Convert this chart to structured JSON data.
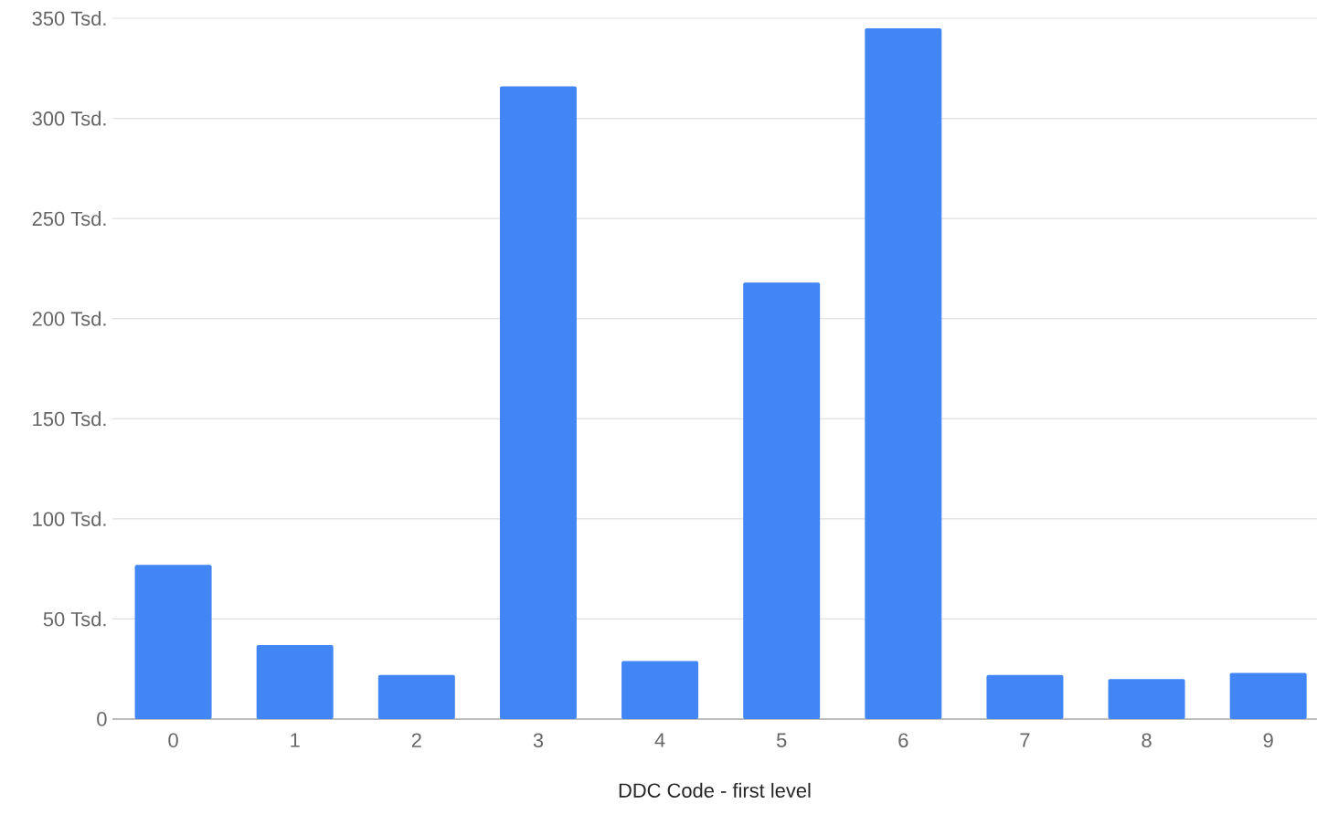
{
  "chart_data": {
    "type": "bar",
    "xlabel": "DDC Code - first level",
    "categories": [
      "0",
      "1",
      "2",
      "3",
      "4",
      "5",
      "6",
      "7",
      "8",
      "9"
    ],
    "values": [
      77,
      37,
      22,
      316,
      29,
      218,
      345,
      22,
      20,
      23
    ],
    "color": "#4285f4",
    "ylim": [
      0,
      350
    ],
    "yticks": [
      0,
      {
        "value": 50,
        "label": "50 Tsd."
      },
      {
        "value": 100,
        "label": "100 Tsd."
      },
      {
        "value": 150,
        "label": "150 Tsd."
      },
      {
        "value": 200,
        "label": "200 Tsd."
      },
      {
        "value": 250,
        "label": "250 Tsd."
      },
      {
        "value": 300,
        "label": "300 Tsd."
      },
      {
        "value": 350,
        "label": "350 Tsd."
      }
    ],
    "grid": "y"
  }
}
